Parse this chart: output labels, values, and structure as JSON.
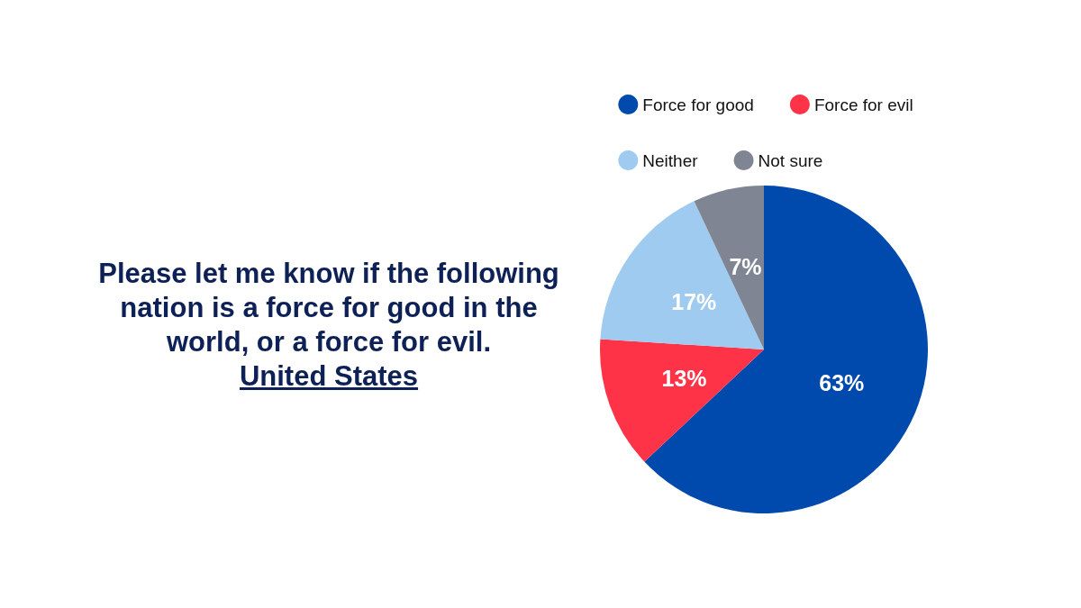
{
  "chart_data": {
    "type": "pie",
    "title": "Please let me know if the following nation is a force for good in the world, or a force for evil.",
    "subtitle": "United States",
    "categories": [
      "Force for good",
      "Force for evil",
      "Neither",
      "Not sure"
    ],
    "values": [
      63,
      13,
      17,
      7
    ],
    "colors": [
      "#004aad",
      "#ff3347",
      "#9ecbef",
      "#7f8592"
    ],
    "value_labels": [
      "63%",
      "13%",
      "17%",
      "7%"
    ],
    "legend": "top"
  }
}
